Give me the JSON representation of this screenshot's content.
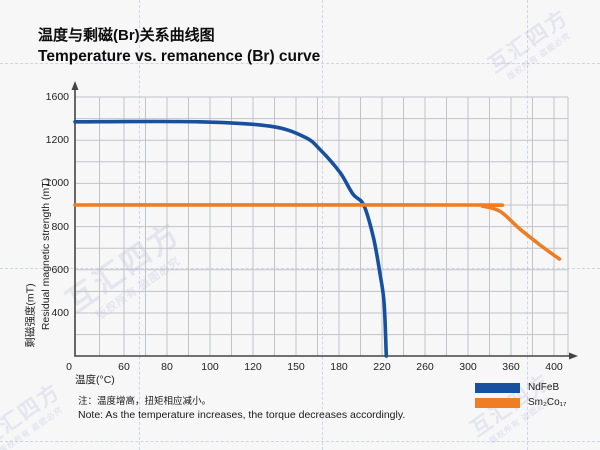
{
  "header": {
    "title_zh": "温度与剩磁(Br)关系曲线图",
    "title_en": "Temperature vs. remanence (Br) curve"
  },
  "chart_data": {
    "type": "line",
    "title": "Temperature vs. remanence (Br) curve",
    "title_zh": "温度与剩磁(Br)关系曲线图",
    "xlabel": "温度(°C)",
    "ylabel_zh": "剩磁强度(mT)",
    "ylabel_en": "Residual magnetic strength (mT)",
    "x_ticks": [
      0,
      60,
      80,
      100,
      120,
      150,
      180,
      220,
      260,
      300,
      360,
      400
    ],
    "y_ticks": [
      1600,
      1200,
      1000,
      800,
      600,
      400
    ],
    "origin_label": "0",
    "grid": true,
    "legend_position": "bottom-right",
    "series": [
      {
        "name": "NdFeB",
        "color": "#17509e",
        "points": [
          [
            0,
            1370
          ],
          [
            95,
            1370
          ],
          [
            132,
            1330
          ],
          [
            156,
            1230
          ],
          [
            167,
            1155
          ],
          [
            181,
            1050
          ],
          [
            193,
            950
          ],
          [
            203,
            900
          ],
          [
            212,
            750
          ],
          [
            218,
            585
          ],
          [
            222,
            445
          ],
          [
            224,
            195
          ]
        ]
      },
      {
        "name": "Sm₂Co₁₇",
        "color": "#ee7d23",
        "points": [
          [
            0,
            900
          ],
          [
            303,
            900
          ],
          [
            320,
            895
          ],
          [
            345,
            870
          ],
          [
            368,
            790
          ],
          [
            387,
            715
          ],
          [
            405,
            650
          ]
        ]
      }
    ]
  },
  "notes": {
    "zh": "注：温度增高，扭矩相应减小。",
    "en": "Note: As the temperature increases, the torque decreases accordingly."
  },
  "watermark": {
    "brand": "互汇四方",
    "claim": "版权所有 盗图必究"
  },
  "colors": {
    "background": "#f7f7f8",
    "grid": "#c2c3c7",
    "axis": "#454545",
    "ndfeb": "#17509e",
    "smco": "#ee7d23"
  }
}
